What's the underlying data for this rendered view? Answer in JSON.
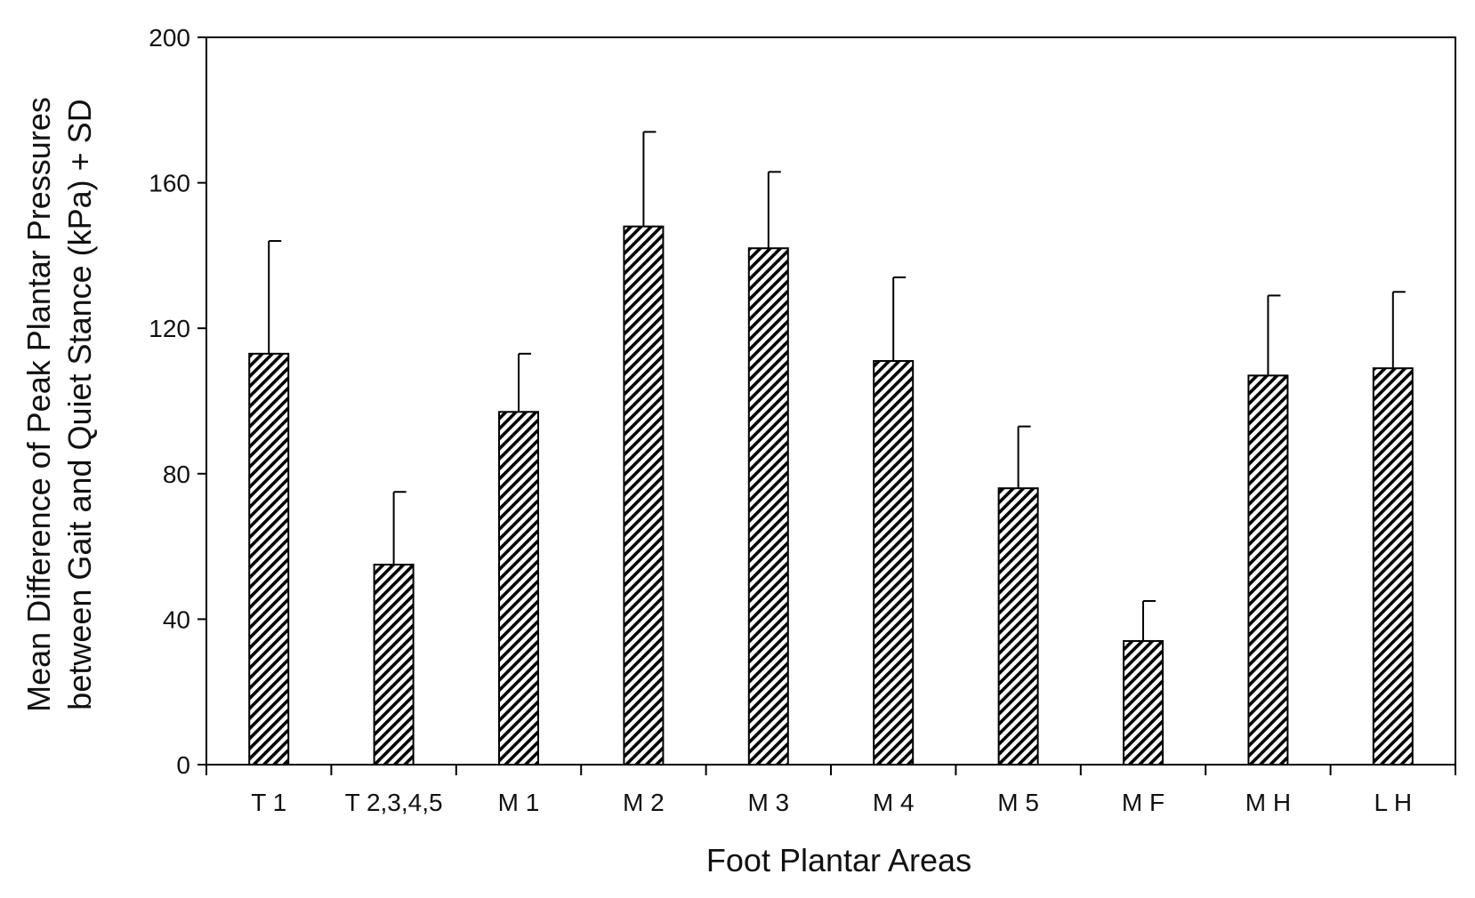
{
  "chart_data": {
    "type": "bar",
    "xlabel": "Foot Plantar Areas",
    "ylabel_lines": [
      "Mean Difference of Peak Plantar Pressures",
      "between Gait and Quiet Stance (kPa) + SD"
    ],
    "ylim": [
      0,
      200
    ],
    "yticks": [
      0,
      40,
      80,
      120,
      160,
      200
    ],
    "categories": [
      "T 1",
      "T 2,3,4,5",
      "M 1",
      "M 2",
      "M 3",
      "M 4",
      "M 5",
      "M F",
      "M H",
      "L H"
    ],
    "values": [
      113,
      55,
      97,
      148,
      142,
      111,
      76,
      34,
      107,
      109
    ],
    "error_upper": [
      144,
      75,
      113,
      174,
      163,
      134,
      93,
      45,
      129,
      130
    ],
    "grid": false,
    "legend": "none",
    "bar_fill": "hatched",
    "colors": {
      "bar_stroke": "#000000",
      "hatch": "#000000",
      "background": "#ffffff"
    }
  }
}
